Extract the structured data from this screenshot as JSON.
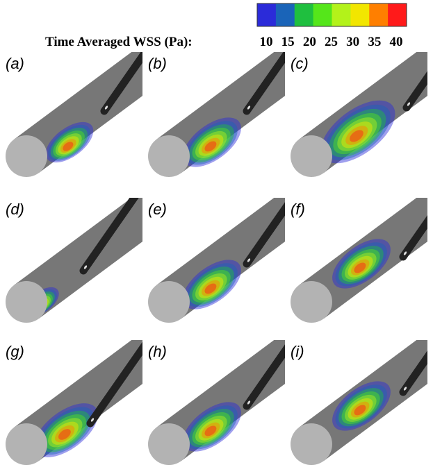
{
  "colorbar": {
    "title": "Time Averaged WSS (Pa):",
    "ticks": [
      10,
      15,
      20,
      25,
      30,
      35,
      40
    ],
    "colors": [
      "#2b2bd9",
      "#1a64b8",
      "#1fbf3f",
      "#55e61a",
      "#b3f21a",
      "#f2e600",
      "#ff7f00",
      "#ff1a1a"
    ]
  },
  "panels": [
    {
      "label": "(a)"
    },
    {
      "label": "(b)"
    },
    {
      "label": "(c)"
    },
    {
      "label": "(d)"
    },
    {
      "label": "(e)"
    },
    {
      "label": "(f)"
    },
    {
      "label": "(g)"
    },
    {
      "label": "(h)"
    },
    {
      "label": "(i)"
    }
  ]
}
